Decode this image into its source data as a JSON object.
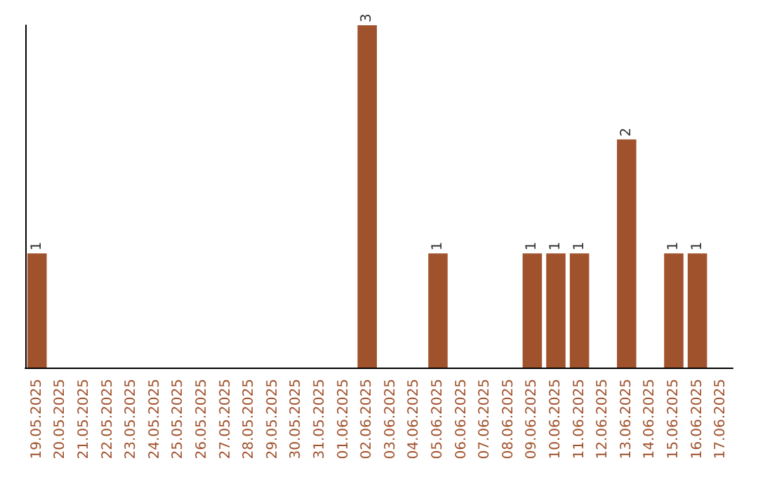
{
  "chart_data": {
    "type": "bar",
    "categories": [
      "19.05.2025",
      "20.05.2025",
      "21.05.2025",
      "22.05.2025",
      "23.05.2025",
      "24.05.2025",
      "25.05.2025",
      "26.05.2025",
      "27.05.2025",
      "28.05.2025",
      "29.05.2025",
      "30.05.2025",
      "31.05.2025",
      "01.06.2025",
      "02.06.2025",
      "03.06.2025",
      "04.06.2025",
      "05.06.2025",
      "06.06.2025",
      "07.06.2025",
      "08.06.2025",
      "09.06.2025",
      "10.06.2025",
      "11.06.2025",
      "12.06.2025",
      "13.06.2025",
      "14.06.2025",
      "15.06.2025",
      "16.06.2025",
      "17.06.2025"
    ],
    "values": [
      1,
      0,
      0,
      0,
      0,
      0,
      0,
      0,
      0,
      0,
      0,
      0,
      0,
      0,
      3,
      0,
      0,
      1,
      0,
      0,
      0,
      1,
      1,
      1,
      0,
      2,
      0,
      1,
      1,
      0
    ],
    "value_labels": [
      "1",
      null,
      null,
      null,
      null,
      null,
      null,
      null,
      null,
      null,
      null,
      null,
      null,
      null,
      "3",
      null,
      null,
      "1",
      null,
      null,
      null,
      "1",
      "1",
      "1",
      null,
      "2",
      null,
      "1",
      "1",
      null
    ],
    "color": "#a0522d",
    "relative": false,
    "grid": false,
    "tick_labels": "x"
  }
}
